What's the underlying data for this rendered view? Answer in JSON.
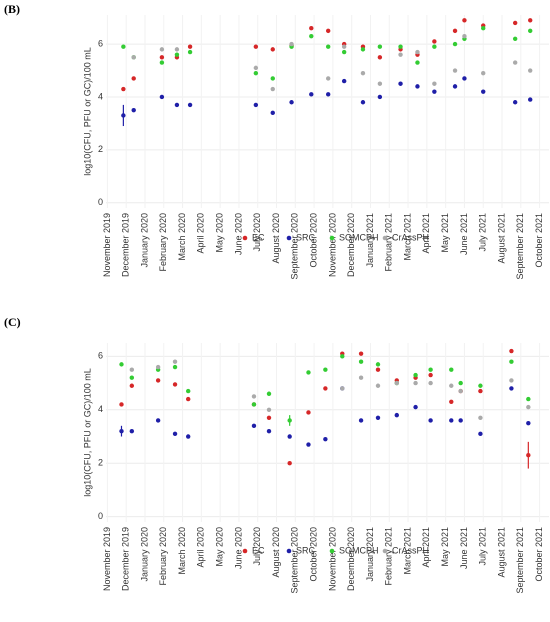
{
  "chart_data": [
    {
      "type": "scatter",
      "panel_label": "(B)",
      "ylabel": "log10(CFU, PFU or GC)/100 mL",
      "x": [
        0.85,
        1.4,
        2.9,
        3.7,
        4.4,
        7.9,
        8.8,
        9.8,
        10.85,
        11.75,
        12.6,
        13.6,
        14.5,
        15.6,
        16.5,
        17.4,
        18.5,
        19.0,
        20.0,
        21.7,
        22.5
      ],
      "xlim": [
        -0.5,
        23.5
      ],
      "xticks": [
        {
          "value": 0,
          "label": "November 2019"
        },
        {
          "value": 1,
          "label": "December 2019"
        },
        {
          "value": 2,
          "label": "January 2020"
        },
        {
          "value": 3,
          "label": "February 2020"
        },
        {
          "value": 4,
          "label": "March 2020"
        },
        {
          "value": 5,
          "label": "April 2020"
        },
        {
          "value": 6,
          "label": "May 2020"
        },
        {
          "value": 7,
          "label": "June 2020"
        },
        {
          "value": 8,
          "label": "July 2020"
        },
        {
          "value": 9,
          "label": "August 2020"
        },
        {
          "value": 10,
          "label": "September 2020"
        },
        {
          "value": 11,
          "label": "October 2020"
        },
        {
          "value": 12,
          "label": "November 2020"
        },
        {
          "value": 13,
          "label": "December 2020"
        },
        {
          "value": 14,
          "label": "January 2021"
        },
        {
          "value": 15,
          "label": "February 2021"
        },
        {
          "value": 16,
          "label": "March 2021"
        },
        {
          "value": 17,
          "label": "April 2021"
        },
        {
          "value": 18,
          "label": "May 2021"
        },
        {
          "value": 19,
          "label": "June 2021"
        },
        {
          "value": 20,
          "label": "July 2021"
        },
        {
          "value": 21,
          "label": "August 2021"
        },
        {
          "value": 22,
          "label": "September 2021"
        },
        {
          "value": 23,
          "label": "October 2021"
        }
      ],
      "ylim": [
        -0.2,
        7.1
      ],
      "yticks": [
        0,
        2,
        4,
        6
      ],
      "grid": true,
      "legend": "bottom",
      "series": [
        {
          "name": "EC",
          "color": "#d62728",
          "values": [
            4.3,
            4.7,
            5.5,
            5.5,
            5.9,
            5.9,
            5.8,
            5.95,
            6.6,
            6.5,
            6.0,
            5.9,
            5.5,
            5.8,
            5.6,
            6.1,
            6.5,
            6.9,
            6.7,
            6.8,
            6.9
          ],
          "errors": [
            null,
            null,
            null,
            null,
            null,
            null,
            null,
            null,
            null,
            null,
            null,
            null,
            null,
            null,
            null,
            null,
            null,
            null,
            null,
            null,
            null
          ]
        },
        {
          "name": "SRC",
          "color": "#1f1fa8",
          "values": [
            3.3,
            3.5,
            4.0,
            3.7,
            3.7,
            3.7,
            3.4,
            3.8,
            4.1,
            4.1,
            4.6,
            3.8,
            4.0,
            4.5,
            4.4,
            4.2,
            4.4,
            4.7,
            4.2,
            3.8,
            3.9
          ],
          "errors": [
            0.4,
            null,
            null,
            null,
            null,
            null,
            null,
            null,
            null,
            null,
            null,
            null,
            null,
            null,
            null,
            null,
            null,
            null,
            null,
            null,
            null
          ]
        },
        {
          "name": "SOMCPH",
          "color": "#33cc33",
          "values": [
            5.9,
            5.5,
            5.3,
            5.6,
            5.7,
            4.9,
            4.7,
            5.9,
            6.3,
            5.9,
            5.7,
            5.8,
            5.9,
            5.9,
            5.3,
            5.9,
            6.0,
            6.2,
            6.6,
            6.2,
            6.5
          ],
          "errors": [
            null,
            null,
            null,
            null,
            null,
            null,
            null,
            null,
            null,
            null,
            null,
            null,
            null,
            null,
            null,
            null,
            null,
            null,
            null,
            null,
            null
          ]
        },
        {
          "name": "CrAssPH",
          "color": "#aaaaaa",
          "values": [
            null,
            5.5,
            5.8,
            5.8,
            null,
            5.1,
            4.3,
            6.0,
            null,
            4.7,
            5.9,
            4.9,
            4.5,
            5.6,
            5.7,
            4.5,
            5.0,
            6.3,
            4.9,
            5.3,
            5.0
          ],
          "errors": [
            null,
            null,
            null,
            null,
            null,
            null,
            null,
            null,
            null,
            null,
            null,
            null,
            null,
            null,
            null,
            null,
            null,
            null,
            null,
            null,
            null
          ]
        }
      ]
    },
    {
      "type": "scatter",
      "panel_label": "(C)",
      "ylabel": "log10(CFU, PFU or GC)/100 mL",
      "x": [
        0.75,
        1.3,
        2.7,
        3.6,
        4.3,
        7.8,
        8.6,
        9.7,
        10.7,
        11.6,
        12.5,
        13.5,
        14.4,
        15.4,
        16.4,
        17.2,
        18.3,
        18.8,
        19.85,
        21.5,
        22.4
      ],
      "xlim": [
        -0.5,
        23.5
      ],
      "xticks": [
        {
          "value": 0,
          "label": "November 2019"
        },
        {
          "value": 1,
          "label": "December 2019"
        },
        {
          "value": 2,
          "label": "January 2020"
        },
        {
          "value": 3,
          "label": "February 2020"
        },
        {
          "value": 4,
          "label": "March 2020"
        },
        {
          "value": 5,
          "label": "April 2020"
        },
        {
          "value": 6,
          "label": "May 2020"
        },
        {
          "value": 7,
          "label": "June 2020"
        },
        {
          "value": 8,
          "label": "July 2020"
        },
        {
          "value": 9,
          "label": "August 2020"
        },
        {
          "value": 10,
          "label": "September 2020"
        },
        {
          "value": 11,
          "label": "October 2020"
        },
        {
          "value": 12,
          "label": "November 2020"
        },
        {
          "value": 13,
          "label": "December 2020"
        },
        {
          "value": 14,
          "label": "January 2021"
        },
        {
          "value": 15,
          "label": "February 2021"
        },
        {
          "value": 16,
          "label": "March 2021"
        },
        {
          "value": 17,
          "label": "April 2021"
        },
        {
          "value": 18,
          "label": "May 2021"
        },
        {
          "value": 19,
          "label": "June 2021"
        },
        {
          "value": 20,
          "label": "July 2021"
        },
        {
          "value": 21,
          "label": "August 2021"
        },
        {
          "value": 22,
          "label": "September 2021"
        },
        {
          "value": 23,
          "label": "October 2021"
        }
      ],
      "ylim": [
        -0.2,
        6.5
      ],
      "yticks": [
        0,
        2,
        4,
        6
      ],
      "grid": true,
      "legend": "bottom",
      "series": [
        {
          "name": "EC",
          "color": "#d62728",
          "values": [
            4.2,
            4.9,
            5.1,
            4.95,
            4.4,
            4.2,
            3.7,
            2.0,
            3.9,
            4.8,
            6.1,
            6.1,
            5.5,
            5.1,
            5.2,
            5.3,
            4.3,
            4.7,
            4.7,
            6.2,
            2.3
          ],
          "errors": [
            null,
            null,
            null,
            null,
            null,
            null,
            null,
            null,
            null,
            null,
            null,
            null,
            null,
            null,
            null,
            null,
            null,
            null,
            null,
            null,
            0.5
          ]
        },
        {
          "name": "SRC",
          "color": "#1f1fa8",
          "values": [
            3.2,
            3.2,
            3.6,
            3.1,
            3.0,
            3.4,
            3.2,
            3.0,
            2.7,
            2.9,
            4.8,
            3.6,
            3.7,
            3.8,
            4.1,
            3.6,
            3.6,
            3.6,
            3.1,
            4.8,
            3.5
          ],
          "errors": [
            0.2,
            null,
            null,
            null,
            null,
            null,
            null,
            null,
            null,
            null,
            null,
            null,
            null,
            null,
            null,
            null,
            null,
            null,
            null,
            null,
            null
          ]
        },
        {
          "name": "SOMCPH",
          "color": "#33cc33",
          "values": [
            5.7,
            5.2,
            5.5,
            5.6,
            4.7,
            4.2,
            4.6,
            3.6,
            5.4,
            5.5,
            6.0,
            5.8,
            5.7,
            5.0,
            5.3,
            5.5,
            5.5,
            5.0,
            4.9,
            5.8,
            4.4
          ],
          "errors": [
            null,
            null,
            null,
            null,
            null,
            null,
            null,
            0.2,
            null,
            null,
            null,
            null,
            null,
            null,
            null,
            null,
            null,
            null,
            null,
            null,
            null
          ]
        },
        {
          "name": "CrAssPH",
          "color": "#aaaaaa",
          "values": [
            null,
            5.5,
            5.6,
            5.8,
            null,
            4.5,
            4.0,
            null,
            null,
            null,
            4.8,
            5.2,
            4.9,
            5.0,
            5.0,
            5.0,
            4.9,
            4.7,
            3.7,
            5.1,
            4.1
          ],
          "errors": [
            null,
            null,
            null,
            null,
            null,
            null,
            null,
            null,
            null,
            null,
            null,
            null,
            null,
            null,
            null,
            null,
            null,
            null,
            null,
            null,
            null
          ]
        }
      ]
    }
  ]
}
